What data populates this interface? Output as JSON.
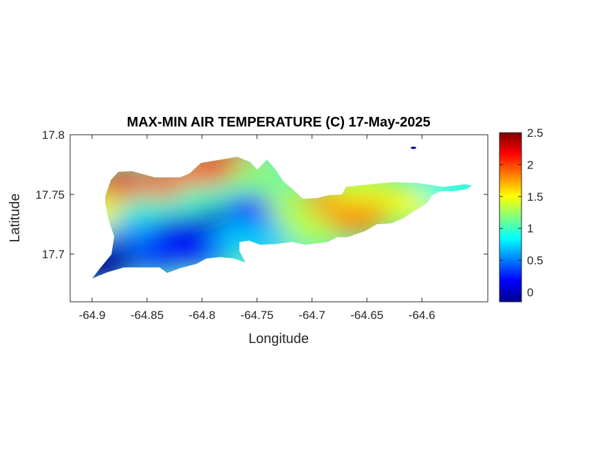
{
  "chart_data": {
    "type": "heatmap",
    "title": "MAX-MIN AIR TEMPERATURE (C) 17-May-2025",
    "xlabel": "Longitude",
    "ylabel": "Latitude",
    "xlim": [
      -64.92,
      -64.54
    ],
    "ylim": [
      17.66,
      17.8
    ],
    "x_ticks": [
      -64.9,
      -64.85,
      -64.8,
      -64.75,
      -64.7,
      -64.65,
      -64.6
    ],
    "x_tick_labels": [
      "-64.9",
      "-64.85",
      "-64.8",
      "-64.75",
      "-64.7",
      "-64.65",
      "-64.6"
    ],
    "y_ticks": [
      17.7,
      17.75,
      17.8
    ],
    "y_tick_labels": [
      "17.7",
      "17.75",
      "17.8"
    ],
    "colorbar": {
      "colormap": "jet",
      "clim": [
        -0.15,
        2.5
      ],
      "ticks": [
        0,
        0.5,
        1,
        1.5,
        2,
        2.5
      ],
      "tick_labels": [
        "0",
        "0.5",
        "1",
        "1.5",
        "2",
        "2.5"
      ]
    },
    "grid": false,
    "samples": [
      {
        "lon": -64.87,
        "lat": 17.757,
        "value": 2.2
      },
      {
        "lon": -64.84,
        "lat": 17.757,
        "value": 2.0
      },
      {
        "lon": -64.8,
        "lat": 17.77,
        "value": 1.9
      },
      {
        "lon": -64.775,
        "lat": 17.775,
        "value": 2.1
      },
      {
        "lon": -64.885,
        "lat": 17.735,
        "value": 1.5
      },
      {
        "lon": -64.85,
        "lat": 17.737,
        "value": 1.0
      },
      {
        "lon": -64.8,
        "lat": 17.745,
        "value": 1.0
      },
      {
        "lon": -64.75,
        "lat": 17.765,
        "value": 1.2
      },
      {
        "lon": -64.86,
        "lat": 17.718,
        "value": 0.6
      },
      {
        "lon": -64.82,
        "lat": 17.72,
        "value": 0.1
      },
      {
        "lon": -64.78,
        "lat": 17.728,
        "value": 0.0
      },
      {
        "lon": -64.75,
        "lat": 17.737,
        "value": 0.2
      },
      {
        "lon": -64.735,
        "lat": 17.712,
        "value": 0.7
      },
      {
        "lon": -64.7,
        "lat": 17.72,
        "value": 1.3
      },
      {
        "lon": -64.88,
        "lat": 17.7,
        "value": 0.0
      },
      {
        "lon": -64.84,
        "lat": 17.7,
        "value": 0.3
      },
      {
        "lon": -64.8,
        "lat": 17.705,
        "value": 0.2
      },
      {
        "lon": -64.895,
        "lat": 17.69,
        "value": -0.1
      },
      {
        "lon": -64.765,
        "lat": 17.715,
        "value": 0.7
      },
      {
        "lon": -64.715,
        "lat": 17.74,
        "value": 1.3
      },
      {
        "lon": -64.68,
        "lat": 17.745,
        "value": 1.8
      },
      {
        "lon": -64.665,
        "lat": 17.745,
        "value": 1.7
      },
      {
        "lon": -64.66,
        "lat": 17.73,
        "value": 1.8
      },
      {
        "lon": -64.64,
        "lat": 17.745,
        "value": 1.8
      },
      {
        "lon": -64.61,
        "lat": 17.742,
        "value": 1.5
      },
      {
        "lon": -64.575,
        "lat": 17.753,
        "value": 0.9
      },
      {
        "lon": -64.655,
        "lat": 17.755,
        "value": 1.4
      }
    ]
  }
}
